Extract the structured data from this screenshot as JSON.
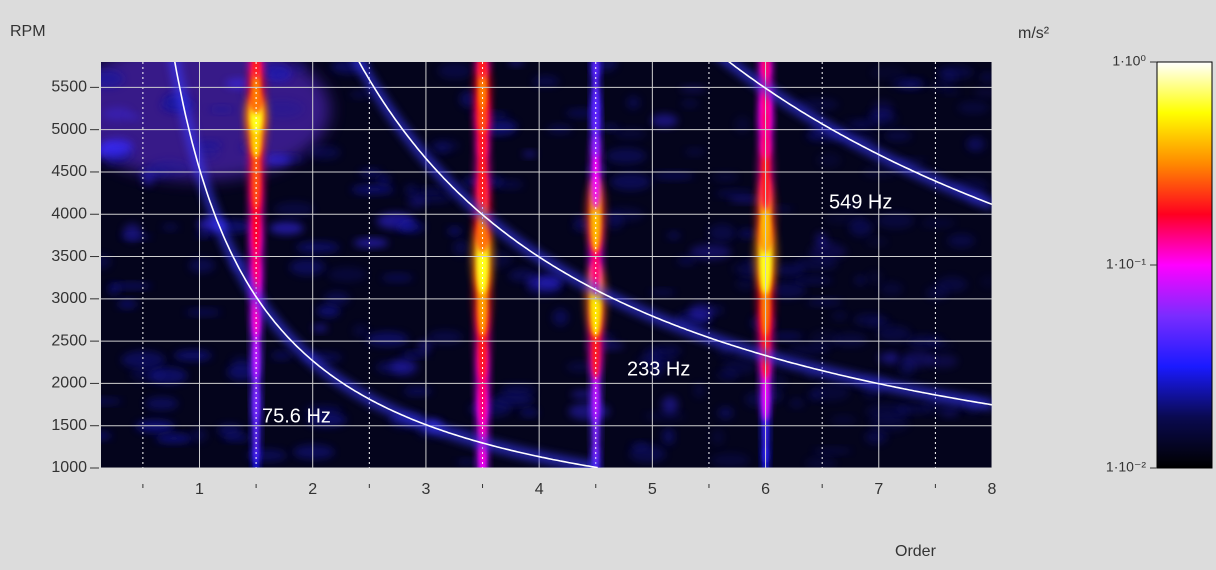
{
  "chart_data": {
    "type": "heatmap",
    "x_label": "Order",
    "y_label": "RPM",
    "colorbar_label": "m/s²",
    "xlim": [
      0.13,
      8
    ],
    "xticks": [
      1,
      2,
      3,
      4,
      5,
      6,
      7,
      8
    ],
    "xminorticks": [
      0.5,
      1.5,
      2.5,
      3.5,
      4.5,
      5.5,
      6.5,
      7.5
    ],
    "ylim": [
      1000,
      5800
    ],
    "yticks": [
      1000,
      1500,
      2000,
      2500,
      3000,
      3500,
      4000,
      4500,
      5000,
      5500
    ],
    "grid": true,
    "colorbar_log": true,
    "clim": [
      0.01,
      1
    ],
    "colorbar_ticks": [
      {
        "value": 1,
        "label": "1·10⁰"
      },
      {
        "value": 0.1,
        "label": "1·10⁻¹"
      },
      {
        "value": 0.01,
        "label": "1·10⁻²"
      }
    ],
    "colormap": [
      "#000000",
      "#0a0a50",
      "#1a1aff",
      "#7a2cff",
      "#ff00ff",
      "#ff0020",
      "#ff8a00",
      "#ffff00",
      "#ffffff"
    ],
    "rpm": [
      1000,
      1500,
      2000,
      2500,
      3000,
      3500,
      4000,
      4500,
      5000,
      5200,
      5500,
      5800
    ],
    "components": [
      {
        "order": 1.5,
        "values": [
          0.03,
          0.05,
          0.06,
          0.08,
          0.12,
          0.15,
          0.18,
          0.25,
          0.45,
          0.6,
          0.3,
          0.2
        ]
      },
      {
        "order": 3.5,
        "values": [
          0.1,
          0.12,
          0.15,
          0.2,
          0.35,
          0.6,
          0.3,
          0.2,
          0.2,
          0.25,
          0.3,
          0.2
        ]
      },
      {
        "order": 4.5,
        "values": [
          0.05,
          0.06,
          0.08,
          0.2,
          0.5,
          0.15,
          0.4,
          0.1,
          0.06,
          0.05,
          0.05,
          0.05
        ]
      },
      {
        "order": 6,
        "values": [
          0.03,
          0.04,
          0.1,
          0.2,
          0.3,
          0.6,
          0.4,
          0.2,
          0.15,
          0.15,
          0.15,
          0.15
        ]
      }
    ],
    "frequency_lines": [
      {
        "frequency": 75.6,
        "label": "75.6 Hz"
      },
      {
        "frequency": 233,
        "label": "233 Hz"
      },
      {
        "frequency": 549,
        "label": "549 Hz"
      }
    ]
  }
}
